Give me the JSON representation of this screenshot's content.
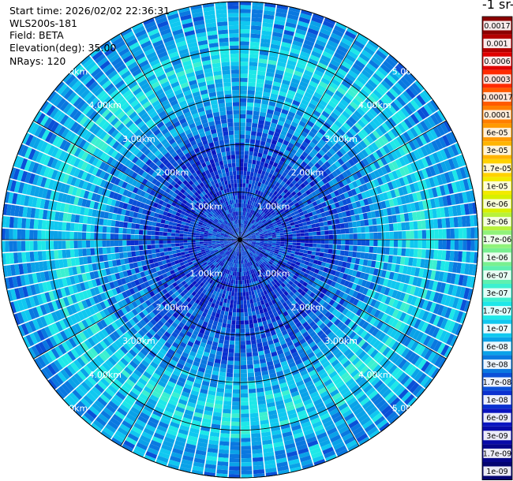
{
  "header": {
    "start_time": "Start time: 2026/02/02 22:36:31",
    "instrument": "WLS200s-181",
    "field": "Field: BETA",
    "elevation": "Elevation(deg): 35.00",
    "nrays": "NRays: 120"
  },
  "colorbar": {
    "title_visible": "-1 sr-",
    "labels": [
      "0.0017",
      "0.001",
      "0.0006",
      "0.0003",
      "0.00017",
      "0.0001",
      "6e-05",
      "3e-05",
      "1.7e-05",
      "1e-05",
      "6e-06",
      "3e-06",
      "1.7e-06",
      "1e-06",
      "6e-07",
      "3e-07",
      "1.7e-07",
      "1e-07",
      "6e-08",
      "3e-08",
      "1.7e-08",
      "1e-08",
      "6e-09",
      "3e-09",
      "1.7e-09",
      "1e-09"
    ],
    "colors": [
      "#8b0000",
      "#b30000",
      "#e00000",
      "#ff2a00",
      "#ff5a00",
      "#ff7e00",
      "#ff9a00",
      "#ffb400",
      "#ffd200",
      "#f2ea00",
      "#d8f000",
      "#b8f23a",
      "#90f27a",
      "#78f090",
      "#5ef0b0",
      "#3cf0d0",
      "#1ee8e8",
      "#10c8f0",
      "#0aa2e8",
      "#0a78e0",
      "#0a50d8",
      "#0a30d0",
      "#0a14c0",
      "#080aa8",
      "#06068a",
      "#040470"
    ]
  },
  "chart_data": {
    "type": "heatmap",
    "projection": "polar (PPI scan)",
    "field": "BETA",
    "instrument": "WLS200s-181",
    "elevation_deg": 35.0,
    "n_rays": 120,
    "range_rings_km": [
      1,
      2,
      3,
      4,
      5
    ],
    "ring_labels": [
      "1.00km",
      "2.00km",
      "3.00km",
      "4.00km",
      "5.00km"
    ],
    "max_range_km": 5.0,
    "color_scale": "log",
    "value_range": [
      1e-09,
      0.0017
    ],
    "spokes_deg": [
      0,
      30,
      60,
      90,
      120,
      150,
      180,
      210,
      240,
      270,
      300,
      330
    ],
    "range_profile_log10": [
      {
        "range_km": 0.5,
        "log10_beta": -7.8
      },
      {
        "range_km": 1.0,
        "log10_beta": -7.9
      },
      {
        "range_km": 2.0,
        "log10_beta": -7.7
      },
      {
        "range_km": 3.0,
        "log10_beta": -7.2
      },
      {
        "range_km": 3.7,
        "log10_beta": -6.8
      },
      {
        "range_km": 4.3,
        "log10_beta": -7.1
      },
      {
        "range_km": 5.0,
        "log10_beta": -7.3
      }
    ]
  }
}
